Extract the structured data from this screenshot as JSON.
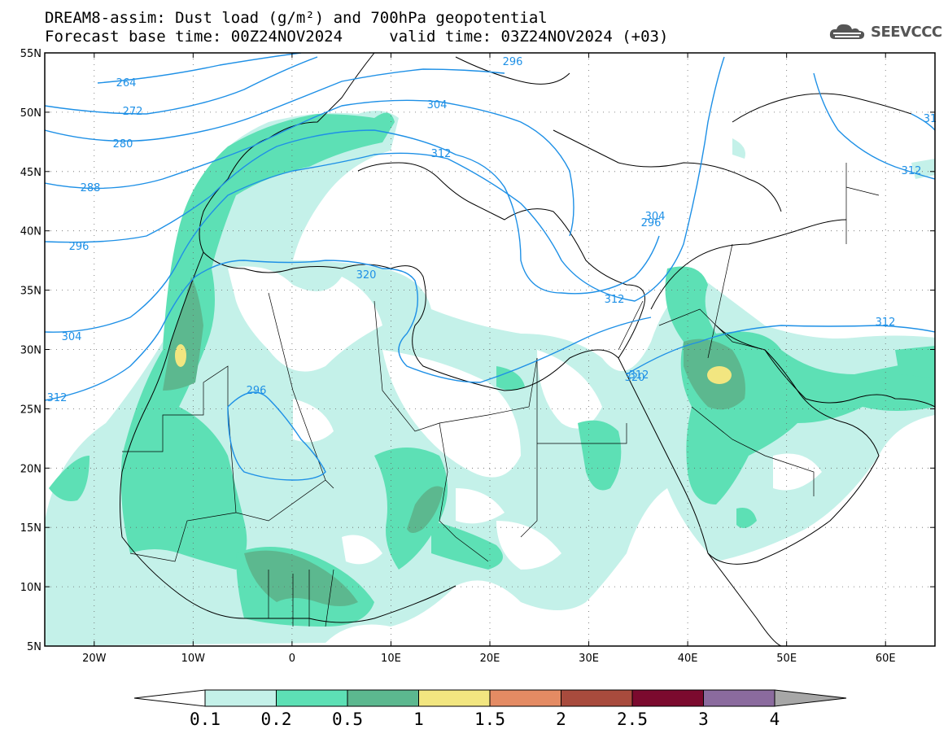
{
  "title": {
    "line1": "DREAM8-assim: Dust load (g/m²) and 700hPa geopotential",
    "line2": "Forecast base time: 00Z24NOV2024     valid time: 03Z24NOV2024 (+03)"
  },
  "logo": {
    "text": "SEEVCCC",
    "icon": "cloud-icon"
  },
  "axes": {
    "lat_labels": [
      "55N",
      "50N",
      "45N",
      "40N",
      "35N",
      "30N",
      "25N",
      "20N",
      "15N",
      "10N",
      "5N"
    ],
    "lon_labels": [
      "20W",
      "10W",
      "0",
      "10E",
      "20E",
      "30E",
      "40E",
      "50E",
      "60E"
    ]
  },
  "contours": {
    "color": "#1e90e6",
    "labels": [
      "264",
      "272",
      "280",
      "288",
      "296",
      "304",
      "312",
      "320",
      "296",
      "304",
      "312",
      "320",
      "296",
      "304",
      "312",
      "312",
      "312",
      "312",
      "296",
      "31"
    ]
  },
  "colorbar": {
    "labels": [
      "0.1",
      "0.2",
      "0.5",
      "1",
      "1.5",
      "2",
      "2.5",
      "3",
      "4"
    ],
    "colors": [
      "#ffffff",
      "#c4f1e9",
      "#5de0b5",
      "#5cb88f",
      "#f2e680",
      "#e48b63",
      "#a84b3d",
      "#7b0a2e",
      "#8b6b9e",
      "#a7a7a7"
    ]
  },
  "chart_data": {
    "type": "heatmap",
    "title": "DREAM8-assim: Dust load (g/m²) and 700hPa geopotential",
    "extent": {
      "lon": [
        -25,
        65
      ],
      "lat": [
        5,
        55
      ]
    },
    "levels": [
      0.1,
      0.2,
      0.5,
      1,
      1.5,
      2,
      2.5,
      3,
      4
    ],
    "contour_levels": [
      264,
      272,
      280,
      288,
      296,
      304,
      312,
      320
    ]
  }
}
